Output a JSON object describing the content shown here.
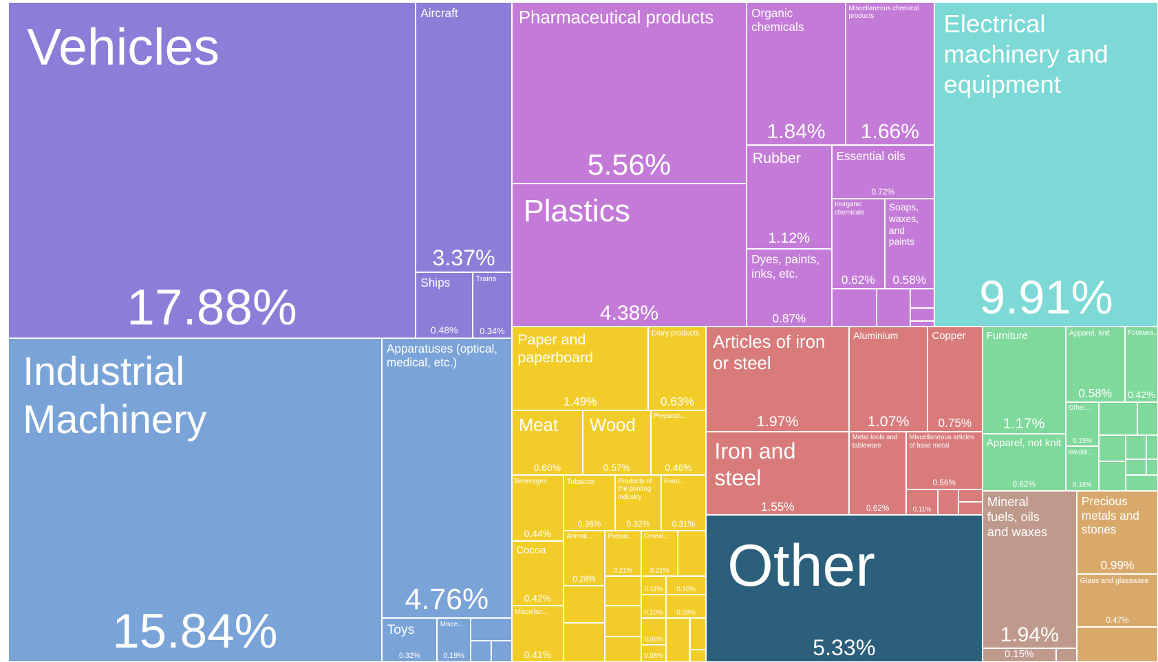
{
  "chart_data": {
    "type": "treemap",
    "categories": [
      "Vehicles",
      "Aircraft",
      "Ships",
      "Trains",
      "Industrial Machinery",
      "Apparatuses (optical, medical, etc.)",
      "Toys",
      "Misce...",
      "Pharmaceutical products",
      "Plastics",
      "Organic chemicals",
      "Miscellaneous chemical products",
      "Rubber",
      "Dyes, paints, inks, etc.",
      "Essential oils",
      "Inorganic chemicals",
      "Soaps, waxes, and paints",
      "Electrical machinery and equipment",
      "Paper and paperboard",
      "Diary products",
      "Meat",
      "Wood",
      "Preparati...",
      "Beverages",
      "Tobacco",
      "Products of the printing industry",
      "Food...",
      "Cocoa",
      "Animal...",
      "Prepar...",
      "Cereal...",
      null,
      null,
      null,
      null,
      null,
      null,
      "Miscellan...",
      "Articles of iron or steel",
      "Aluminium",
      "Copper",
      "Iron and steel",
      "Metal tools and tableware",
      "Miscellaneous articles of base metal",
      null,
      "Other",
      "Furniture",
      "Apparel, knit",
      "Footwea...",
      "Apparel, not knit",
      "Other...",
      "Weddi...",
      "Mineral fuels, oils and waxes",
      null,
      "Precious metals and stones",
      "Glass and glassware"
    ],
    "values": [
      17.88,
      3.37,
      0.48,
      0.34,
      15.84,
      4.76,
      0.32,
      0.19,
      5.56,
      4.38,
      1.84,
      1.66,
      1.12,
      0.87,
      0.72,
      0.62,
      0.58,
      9.91,
      1.49,
      0.63,
      0.6,
      0.57,
      0.46,
      0.44,
      0.36,
      0.32,
      0.31,
      0.42,
      0.28,
      0.21,
      0.21,
      0.11,
      0.1,
      0.1,
      0.09,
      0.08,
      0.08,
      0.41,
      1.97,
      1.07,
      0.75,
      1.55,
      0.62,
      0.56,
      0.11,
      5.33,
      1.17,
      0.58,
      0.42,
      0.62,
      0.19,
      0.18,
      1.94,
      0.15,
      0.99,
      0.47
    ],
    "value_labels": [
      "17.88%",
      "3.37%",
      "0.48%",
      "0.34%",
      "15.84%",
      "4.76%",
      "0.32%",
      "0.19%",
      "5.56%",
      "4.38%",
      "1.84%",
      "1.66%",
      "1.12%",
      "0.87%",
      "0.72%",
      "0.62%",
      "0.58%",
      "9.91%",
      "1.49%",
      "0.63%",
      "0.60%",
      "0.57%",
      "0.46%",
      "0.44%",
      "0.36%",
      "0.32%",
      "0.31%",
      "0.42%",
      "0.28%",
      "0.21%",
      "0.21%",
      "0.11%",
      "0.10%",
      "0.10%",
      "0.09%",
      "0.08%",
      "0.08%",
      "0.41%",
      "1.97%",
      "1.07%",
      "0.75%",
      "1.55%",
      "0.62%",
      "0.56%",
      "0.11%",
      "5.33%",
      "1.17%",
      "0.58%",
      "0.42%",
      "0.62%",
      "0.19%",
      "0.18%",
      "1.94%",
      "0.15%",
      "0.99%",
      "0.47%"
    ],
    "colors": [
      "#8a7ed8",
      "#8a7ed8",
      "#8a7ed8",
      "#8a7ed8",
      "#7aa3d8",
      "#7aa3d8",
      "#7aa3d8",
      "#7aa3d8",
      "#c47bd8",
      "#c47bd8",
      "#c47bd8",
      "#c47bd8",
      "#c47bd8",
      "#c47bd8",
      "#c47bd8",
      "#c47bd8",
      "#c47bd8",
      "#7cd9d6",
      "#f2cd2a",
      "#f2cd2a",
      "#f2cd2a",
      "#f2cd2a",
      "#f2cd2a",
      "#f2cd2a",
      "#f2cd2a",
      "#f2cd2a",
      "#f2cd2a",
      "#f2cd2a",
      "#f2cd2a",
      "#f2cd2a",
      "#f2cd2a",
      "#f2cd2a",
      "#f2cd2a",
      "#f2cd2a",
      "#f2cd2a",
      "#f2cd2a",
      "#f2cd2a",
      "#f2cd2a",
      "#d97b7b",
      "#d97b7b",
      "#d97b7b",
      "#d97b7b",
      "#d97b7b",
      "#d97b7b",
      "#d97b7b",
      "#2b5f7b",
      "#7ed99b",
      "#7ed99b",
      "#7ed99b",
      "#7ed99b",
      "#7ed99b",
      "#7ed99b",
      "#bf9a8c",
      "#bf9a8c",
      "#d9a96b",
      "#d9a96b"
    ]
  }
}
